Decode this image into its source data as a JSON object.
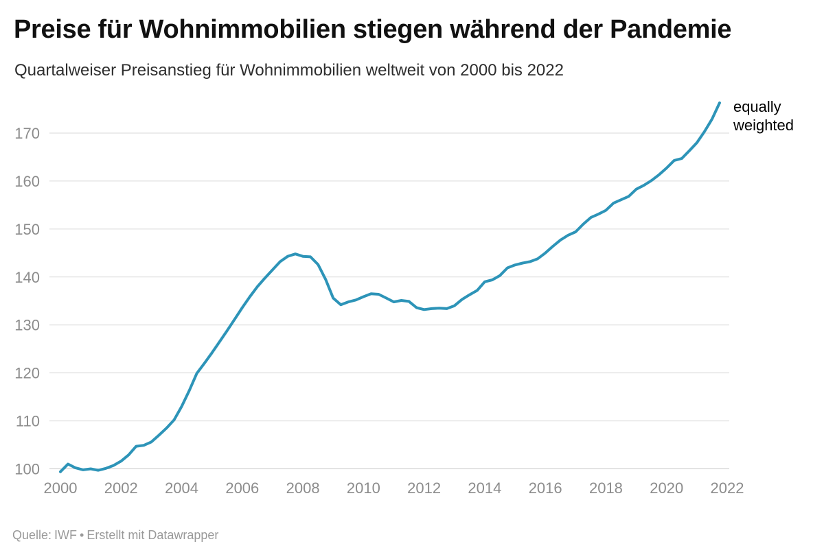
{
  "chart_data": {
    "type": "line",
    "title": "Preise für Wohnimmobilien stiegen während der Pandemie",
    "subtitle": "Quartalweiser Preisanstieg für Wohnimmobilien weltweit von 2000 bis 2022",
    "x_ticks": [
      2000,
      2002,
      2004,
      2006,
      2008,
      2010,
      2012,
      2014,
      2016,
      2018,
      2020,
      2022
    ],
    "y_ticks": [
      100,
      110,
      120,
      130,
      140,
      150,
      160,
      170
    ],
    "x_range": [
      1999.6,
      2022.1
    ],
    "y_range": [
      98,
      177
    ],
    "grid": "horizontal",
    "legend_position": "end-of-line",
    "xlabel": "",
    "ylabel": "",
    "series": [
      {
        "name": "equally weighted",
        "color": "#2d94b8",
        "points": [
          [
            2000.0,
            99.4
          ],
          [
            2000.25,
            101.0
          ],
          [
            2000.5,
            100.2
          ],
          [
            2000.75,
            99.8
          ],
          [
            2001.0,
            100.0
          ],
          [
            2001.25,
            99.7
          ],
          [
            2001.5,
            100.1
          ],
          [
            2001.75,
            100.7
          ],
          [
            2002.0,
            101.6
          ],
          [
            2002.25,
            102.9
          ],
          [
            2002.5,
            104.7
          ],
          [
            2002.75,
            104.9
          ],
          [
            2003.0,
            105.6
          ],
          [
            2003.25,
            107.0
          ],
          [
            2003.5,
            108.5
          ],
          [
            2003.75,
            110.2
          ],
          [
            2004.0,
            113.0
          ],
          [
            2004.25,
            116.3
          ],
          [
            2004.5,
            119.9
          ],
          [
            2004.75,
            122.0
          ],
          [
            2005.0,
            124.2
          ],
          [
            2005.25,
            126.5
          ],
          [
            2005.5,
            128.8
          ],
          [
            2005.75,
            131.2
          ],
          [
            2006.0,
            133.6
          ],
          [
            2006.25,
            135.9
          ],
          [
            2006.5,
            138.0
          ],
          [
            2006.75,
            139.8
          ],
          [
            2007.0,
            141.5
          ],
          [
            2007.25,
            143.2
          ],
          [
            2007.5,
            144.3
          ],
          [
            2007.75,
            144.8
          ],
          [
            2008.0,
            144.3
          ],
          [
            2008.25,
            144.2
          ],
          [
            2008.5,
            142.6
          ],
          [
            2008.75,
            139.5
          ],
          [
            2009.0,
            135.6
          ],
          [
            2009.25,
            134.2
          ],
          [
            2009.5,
            134.8
          ],
          [
            2009.75,
            135.2
          ],
          [
            2010.0,
            135.9
          ],
          [
            2010.25,
            136.5
          ],
          [
            2010.5,
            136.4
          ],
          [
            2010.75,
            135.6
          ],
          [
            2011.0,
            134.8
          ],
          [
            2011.25,
            135.1
          ],
          [
            2011.5,
            134.9
          ],
          [
            2011.75,
            133.6
          ],
          [
            2012.0,
            133.2
          ],
          [
            2012.25,
            133.4
          ],
          [
            2012.5,
            133.5
          ],
          [
            2012.75,
            133.4
          ],
          [
            2013.0,
            134.0
          ],
          [
            2013.25,
            135.3
          ],
          [
            2013.5,
            136.3
          ],
          [
            2013.75,
            137.2
          ],
          [
            2014.0,
            139.0
          ],
          [
            2014.25,
            139.4
          ],
          [
            2014.5,
            140.3
          ],
          [
            2014.75,
            141.9
          ],
          [
            2015.0,
            142.5
          ],
          [
            2015.25,
            142.9
          ],
          [
            2015.5,
            143.2
          ],
          [
            2015.75,
            143.8
          ],
          [
            2016.0,
            145.0
          ],
          [
            2016.25,
            146.4
          ],
          [
            2016.5,
            147.7
          ],
          [
            2016.75,
            148.7
          ],
          [
            2017.0,
            149.4
          ],
          [
            2017.25,
            151.0
          ],
          [
            2017.5,
            152.4
          ],
          [
            2017.75,
            153.1
          ],
          [
            2018.0,
            153.9
          ],
          [
            2018.25,
            155.4
          ],
          [
            2018.5,
            156.1
          ],
          [
            2018.75,
            156.8
          ],
          [
            2019.0,
            158.3
          ],
          [
            2019.25,
            159.1
          ],
          [
            2019.5,
            160.1
          ],
          [
            2019.75,
            161.3
          ],
          [
            2020.0,
            162.7
          ],
          [
            2020.25,
            164.3
          ],
          [
            2020.5,
            164.7
          ],
          [
            2020.75,
            166.3
          ],
          [
            2021.0,
            168.0
          ],
          [
            2021.25,
            170.3
          ],
          [
            2021.5,
            172.9
          ],
          [
            2021.75,
            176.3
          ]
        ]
      }
    ]
  },
  "footer": {
    "source_label": "Quelle:",
    "source": "IWF",
    "separator": "•",
    "credit": "Erstellt mit Datawrapper"
  }
}
